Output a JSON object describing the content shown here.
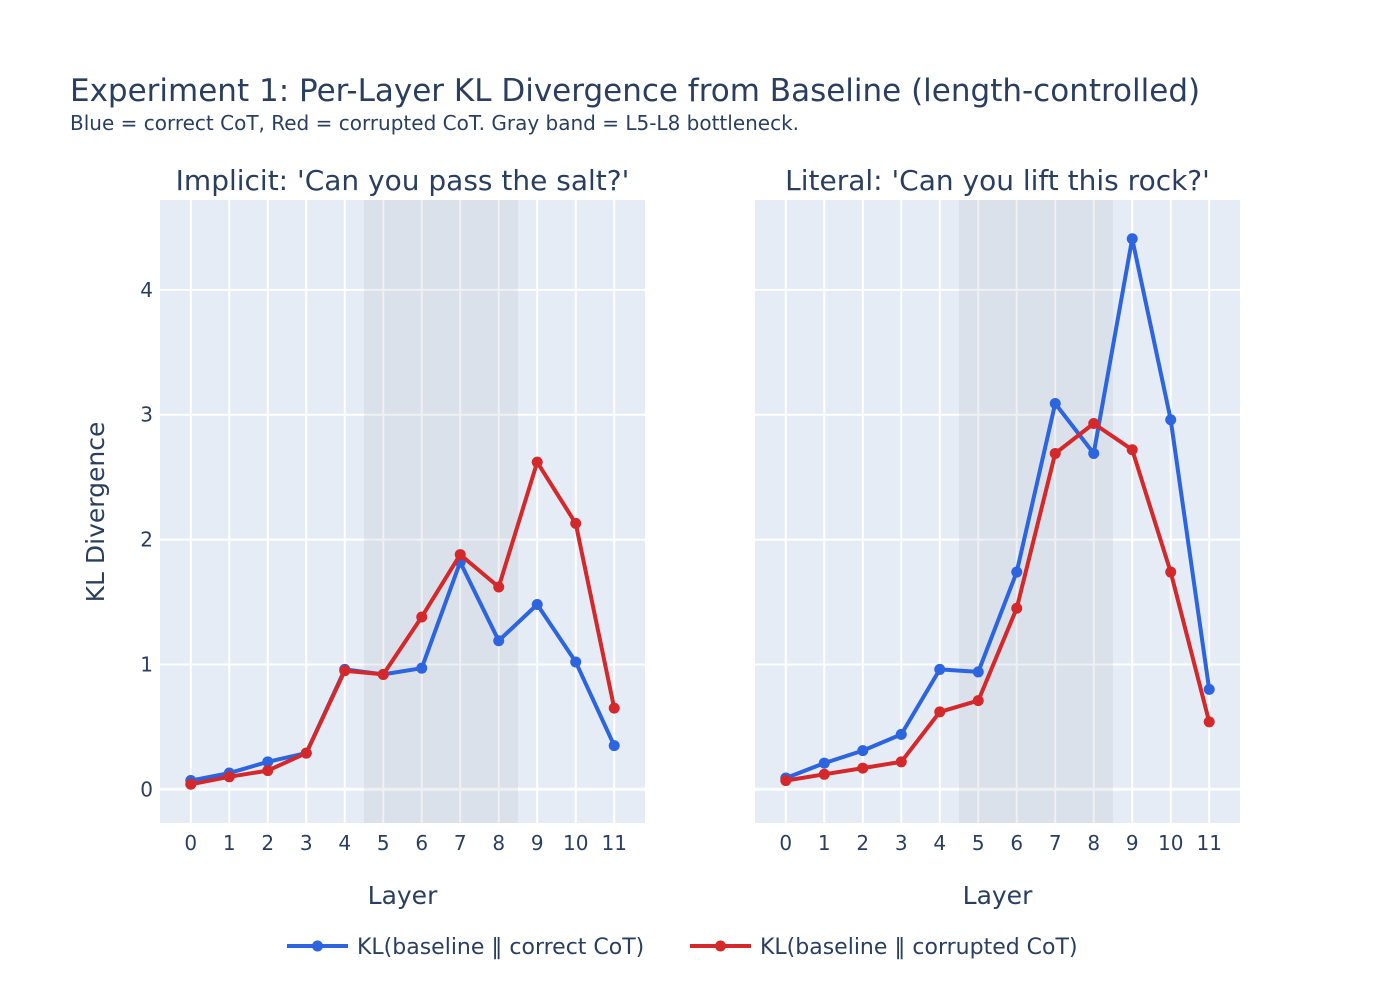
{
  "chart_data": {
    "type": "line",
    "title": "Experiment 1: Per-Layer KL Divergence from Baseline (length-controlled)",
    "subtitle": "Blue = correct CoT, Red = corrupted CoT. Gray band = L5-L8 bottleneck.",
    "ylabel": "KL Divergence",
    "xlabel": "Layer",
    "x": [
      0,
      1,
      2,
      3,
      4,
      5,
      6,
      7,
      8,
      9,
      10,
      11
    ],
    "ylim": [
      -0.27,
      4.72
    ],
    "yticks": [
      0,
      1,
      2,
      3,
      4
    ],
    "shaded_band": [
      4.5,
      8.5
    ],
    "legend_position": "bottom-center",
    "colors": {
      "correct": "#2d64e0",
      "corrupted": "#d4282b",
      "band": "#b4b9c4",
      "plot_bg": "#e5ecf6"
    },
    "legend": [
      "KL(baseline ‖ correct CoT)",
      "KL(baseline ‖ corrupted CoT)"
    ],
    "panels": [
      {
        "title": "Implicit: 'Can you pass the salt?'",
        "series": [
          {
            "name": "KL(baseline ‖ correct CoT)",
            "values": [
              0.07,
              0.13,
              0.22,
              0.29,
              0.96,
              0.92,
              0.97,
              1.82,
              1.19,
              1.48,
              1.02,
              0.35
            ]
          },
          {
            "name": "KL(baseline ‖ corrupted CoT)",
            "values": [
              0.04,
              0.1,
              0.15,
              0.29,
              0.95,
              0.92,
              1.38,
              1.88,
              1.62,
              2.62,
              2.13,
              0.65
            ]
          }
        ]
      },
      {
        "title": "Literal: 'Can you lift this rock?'",
        "series": [
          {
            "name": "KL(baseline ‖ correct CoT)",
            "values": [
              0.09,
              0.21,
              0.31,
              0.44,
              0.96,
              0.94,
              1.74,
              3.09,
              2.69,
              4.41,
              2.96,
              0.8
            ]
          },
          {
            "name": "KL(baseline ‖ corrupted CoT)",
            "values": [
              0.07,
              0.12,
              0.17,
              0.22,
              0.62,
              0.71,
              1.45,
              2.69,
              2.93,
              2.72,
              1.74,
              0.54
            ]
          }
        ]
      }
    ]
  }
}
